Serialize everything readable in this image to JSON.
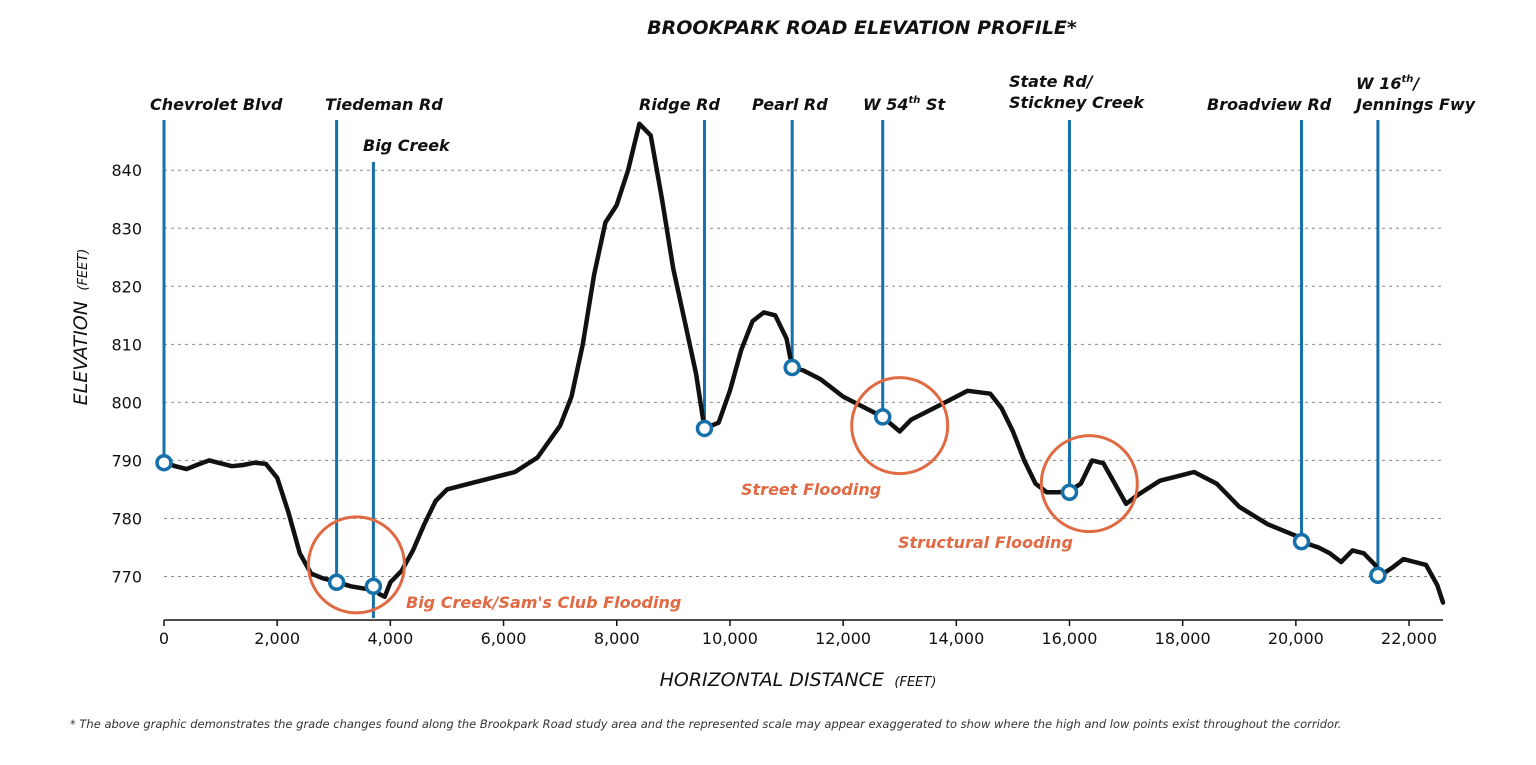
{
  "chart_data": {
    "type": "line",
    "title": "BROOKPARK ROAD ELEVATION PROFILE*",
    "xlabel": "HORIZONTAL DISTANCE",
    "xlabel_unit": "(FEET)",
    "ylabel": "ELEVATION",
    "ylabel_unit": "(FEET)",
    "xlim": [
      0,
      22600
    ],
    "ylim": [
      762.5,
      849
    ],
    "x_ticks": [
      0,
      2000,
      4000,
      6000,
      8000,
      10000,
      12000,
      14000,
      16000,
      18000,
      20000,
      22000
    ],
    "x_tick_labels": [
      "0",
      "2,000",
      "4,000",
      "6,000",
      "8,000",
      "10,000",
      "12,000",
      "14,000",
      "16,000",
      "18,000",
      "20,000",
      "22,000"
    ],
    "y_ticks": [
      770,
      780,
      790,
      800,
      810,
      820,
      830,
      840
    ],
    "y_tick_labels": [
      "770",
      "780",
      "790",
      "800",
      "810",
      "820",
      "830",
      "840"
    ],
    "grid": "horizontal dashed",
    "series": [
      {
        "name": "Elevation",
        "x": [
          0,
          200,
          400,
          600,
          800,
          1000,
          1200,
          1400,
          1600,
          1800,
          2000,
          2200,
          2400,
          2600,
          2800,
          3000,
          3300,
          3600,
          3700,
          3800,
          3900,
          4000,
          4200,
          4400,
          4600,
          4800,
          5000,
          5400,
          5800,
          6200,
          6600,
          7000,
          7200,
          7400,
          7600,
          7800,
          8000,
          8200,
          8300,
          8400,
          8600,
          8800,
          9000,
          9200,
          9400,
          9550,
          9800,
          10000,
          10200,
          10400,
          10600,
          10800,
          11000,
          11100,
          11300,
          11600,
          12000,
          12400,
          12700,
          13000,
          13200,
          13600,
          14000,
          14200,
          14600,
          14800,
          15000,
          15200,
          15400,
          15600,
          15800,
          16000,
          16200,
          16400,
          16600,
          16800,
          17000,
          17200,
          17600,
          18000,
          18200,
          18600,
          19000,
          19500,
          20000,
          20100,
          20400,
          20600,
          20800,
          21000,
          21200,
          21400,
          21500,
          21700,
          21900,
          22100,
          22300,
          22500,
          22600
        ],
        "values": [
          789.6,
          789.0,
          788.5,
          789.3,
          790.0,
          789.5,
          789.0,
          789.2,
          789.6,
          789.4,
          787.0,
          781.0,
          774.0,
          770.5,
          769.7,
          769.2,
          768.3,
          767.8,
          768.3,
          767.0,
          766.5,
          769.0,
          771.0,
          774.5,
          779.0,
          783.0,
          785.0,
          786.0,
          787.0,
          788.0,
          790.5,
          796.0,
          801.0,
          810.0,
          822.0,
          831.0,
          834.0,
          840.0,
          844.0,
          848.0,
          846.0,
          835.0,
          823.0,
          814.0,
          805.0,
          795.5,
          796.5,
          802.0,
          809.0,
          814.0,
          815.5,
          815.0,
          811.0,
          806.0,
          805.5,
          804.0,
          801.0,
          799.0,
          797.5,
          795.0,
          797.0,
          799.0,
          801.0,
          802.0,
          801.5,
          799.0,
          795.0,
          790.0,
          786.0,
          784.5,
          784.5,
          784.7,
          786.0,
          790.0,
          789.5,
          786.0,
          782.5,
          784.0,
          786.5,
          787.5,
          788.0,
          786.0,
          782.0,
          779.0,
          777.0,
          776.0,
          775.0,
          774.0,
          772.5,
          774.5,
          774.0,
          772.0,
          770.2,
          771.5,
          773.0,
          772.5,
          772.0,
          768.5,
          765.5
        ]
      }
    ],
    "road_markers": [
      {
        "name": "Chevrolet Blvd",
        "x": 0,
        "elevation": 789.6
      },
      {
        "name": "Tiedeman Rd",
        "x": 3050,
        "elevation": 769.0
      },
      {
        "name": "Big Creek",
        "x": 3700,
        "elevation": 768.3
      },
      {
        "name": "Ridge Rd",
        "x": 9550,
        "elevation": 795.5
      },
      {
        "name": "Pearl Rd",
        "x": 11100,
        "elevation": 806.0
      },
      {
        "name": "W 54th St",
        "x": 12700,
        "elevation": 797.5
      },
      {
        "name": "State Rd/ Stickney Creek",
        "x": 16000,
        "elevation": 784.5
      },
      {
        "name": "Broadview Rd",
        "x": 20100,
        "elevation": 776.0
      },
      {
        "name": "W 16th/ Jennings Fwy",
        "x": 21450,
        "elevation": 770.2
      }
    ],
    "flood_zones": [
      {
        "label": "Big Creek/Sam's Club Flooding",
        "center_x": 3400,
        "center_y": 772
      },
      {
        "label": "Street Flooding",
        "center_x": 13000,
        "center_y": 796
      },
      {
        "label": "Structural Flooding",
        "center_x": 16350,
        "center_y": 786
      }
    ]
  },
  "labels": {
    "road": {
      "chevrolet": "Chevrolet Blvd",
      "tiedeman": "Tiedeman Rd",
      "big_creek": "Big Creek",
      "ridge": "Ridge Rd",
      "pearl": "Pearl Rd",
      "w54_pre": "W 54",
      "w54_sup": "th",
      "w54_post": " St",
      "state_line1": "State Rd/",
      "state_line2": "Stickney Creek",
      "broadview": "Broadview Rd",
      "w16_pre": "W 16",
      "w16_sup": "th",
      "w16_post": "/",
      "w16_line2": "Jennings Fwy"
    },
    "flood": {
      "big_creek": "Big Creek/Sam's Club Flooding",
      "street": "Street Flooding",
      "structural": "Structural Flooding"
    }
  },
  "footnote": "* The above graphic demonstrates the grade changes found along the Brookpark Road study area and the represented scale may appear exaggerated to show where the high and low points exist throughout the corridor.",
  "colors": {
    "line": "#111111",
    "marker": "#1670a9",
    "flood": "#e06a43",
    "grid": "#8a8a8a"
  }
}
